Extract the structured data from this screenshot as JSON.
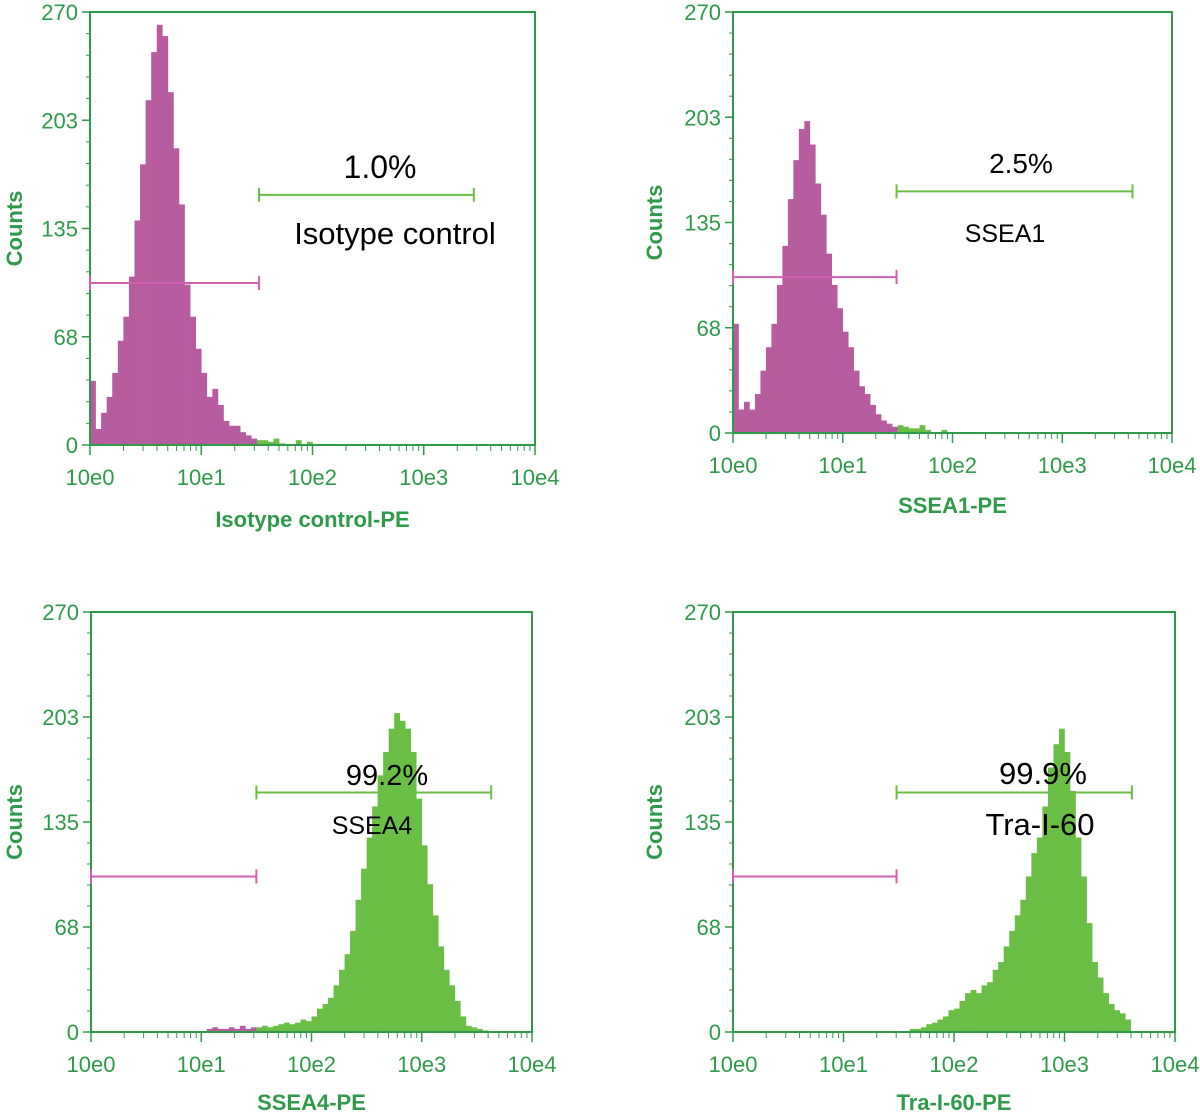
{
  "chart_data": [
    {
      "type": "bar",
      "title": "Isotype control",
      "xlabel": "Isotype control-PE",
      "ylabel": "Counts",
      "xscale": "log10",
      "xlim_log10": [
        0,
        4
      ],
      "ylim": [
        0,
        270
      ],
      "yticks": [
        "0",
        "68",
        "135",
        "203",
        "270"
      ],
      "xticks": [
        "10e0",
        "10e1",
        "10e2",
        "10e3",
        "10e4"
      ],
      "bin_width_log10": 0.05,
      "bins_start_log10": 0,
      "counts": [
        40,
        10,
        20,
        30,
        45,
        65,
        80,
        105,
        140,
        175,
        215,
        245,
        262,
        255,
        220,
        185,
        150,
        100,
        80,
        60,
        45,
        30,
        35,
        25,
        15,
        12,
        12,
        8,
        6,
        4,
        3,
        3,
        2,
        4,
        1,
        0,
        0,
        3,
        0,
        2
      ],
      "negative_gate": {
        "from_log10": 0,
        "to_log10": 1.52,
        "y": 101
      },
      "positive_gate": {
        "from_log10": 1.52,
        "to_log10": 3.45,
        "y": 156
      },
      "percent_label": "1.0%",
      "marker_label": "Isotype control"
    },
    {
      "type": "bar",
      "title": "SSEA1",
      "xlabel": "SSEA1-PE",
      "ylabel": "Counts",
      "xscale": "log10",
      "xlim_log10": [
        0,
        4
      ],
      "ylim": [
        0,
        270
      ],
      "yticks": [
        "0",
        "68",
        "135",
        "203",
        "270"
      ],
      "xticks": [
        "10e0",
        "10e1",
        "10e2",
        "10e3",
        "10e4"
      ],
      "bin_width_log10": 0.05,
      "bins_start_log10": 0,
      "counts": [
        70,
        15,
        20,
        15,
        25,
        40,
        55,
        70,
        95,
        120,
        150,
        175,
        195,
        200,
        185,
        160,
        140,
        115,
        95,
        80,
        65,
        55,
        40,
        30,
        25,
        18,
        12,
        8,
        6,
        4,
        5,
        4,
        3,
        3,
        5,
        2,
        0,
        0,
        2
      ],
      "negative_gate": {
        "from_log10": 0,
        "to_log10": 1.49,
        "y": 100
      },
      "positive_gate": {
        "from_log10": 1.49,
        "to_log10": 3.64,
        "y": 155
      },
      "percent_label": "2.5%",
      "marker_label": "SSEA1"
    },
    {
      "type": "bar",
      "title": "SSEA4",
      "xlabel": "SSEA4-PE",
      "ylabel": "Counts",
      "xscale": "log10",
      "xlim_log10": [
        0,
        4
      ],
      "ylim": [
        0,
        270
      ],
      "yticks": [
        "0",
        "68",
        "135",
        "203",
        "270"
      ],
      "xticks": [
        "10e0",
        "10e1",
        "10e2",
        "10e3",
        "10e4"
      ],
      "bin_width_log10": 0.05,
      "bins_start_log10": 1.05,
      "counts": [
        2,
        3,
        2,
        2,
        3,
        2,
        4,
        2,
        3,
        3,
        4,
        3,
        4,
        5,
        6,
        5,
        6,
        8,
        7,
        10,
        15,
        18,
        22,
        30,
        40,
        50,
        65,
        85,
        105,
        125,
        145,
        165,
        180,
        195,
        205,
        200,
        195,
        180,
        150,
        120,
        95,
        75,
        55,
        40,
        30,
        20,
        10,
        4,
        3,
        2,
        1
      ],
      "negative_gate": {
        "from_log10": 0,
        "to_log10": 1.5,
        "y": 100
      },
      "positive_gate": {
        "from_log10": 1.5,
        "to_log10": 3.63,
        "y": 154
      },
      "percent_label": "99.2%",
      "marker_label": "SSEA4"
    },
    {
      "type": "bar",
      "title": "Tra-I-60",
      "xlabel": "Tra-I-60-PE",
      "ylabel": "Counts",
      "xscale": "log10",
      "xlim_log10": [
        0,
        4
      ],
      "ylim": [
        0,
        270
      ],
      "yticks": [
        "0",
        "68",
        "135",
        "203",
        "270"
      ],
      "xticks": [
        "10e0",
        "10e1",
        "10e2",
        "10e3",
        "10e4"
      ],
      "bin_width_log10": 0.05,
      "bins_start_log10": 1.6,
      "counts": [
        2,
        2,
        3,
        5,
        6,
        8,
        10,
        14,
        15,
        20,
        25,
        27,
        25,
        30,
        32,
        40,
        45,
        55,
        65,
        75,
        85,
        100,
        115,
        125,
        145,
        170,
        185,
        195,
        180,
        155,
        125,
        100,
        70,
        45,
        35,
        25,
        18,
        14,
        12,
        8
      ],
      "negative_gate": {
        "from_log10": 0,
        "to_log10": 1.48,
        "y": 100
      },
      "positive_gate": {
        "from_log10": 1.48,
        "to_log10": 3.61,
        "y": 154
      },
      "percent_label": "99.9%",
      "marker_label": "Tra-I-60"
    }
  ],
  "colors": {
    "axis": "#2e9a4a",
    "negative_fill": "#b85ca0",
    "positive_fill": "#6abe45",
    "negative_gate": "#d060b0",
    "positive_gate": "#6abe45"
  }
}
